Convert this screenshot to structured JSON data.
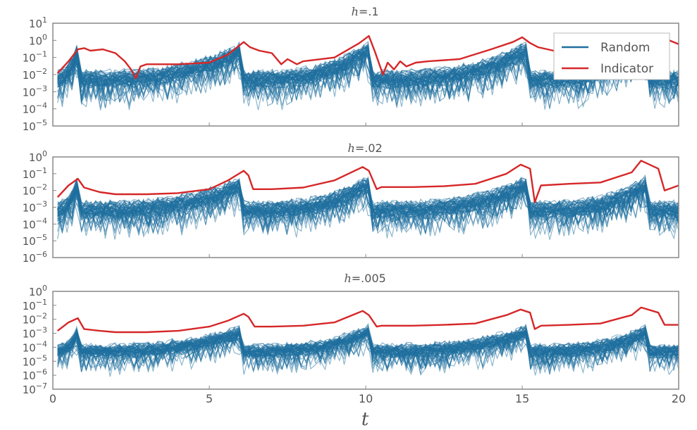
{
  "chart_data": {
    "type": "line",
    "shared_x": {
      "label": "t",
      "range": [
        0,
        20
      ],
      "ticks": [
        0,
        5,
        10,
        15,
        20
      ],
      "tick_labels": [
        "0",
        "5",
        "10",
        "15",
        "20"
      ]
    },
    "legend": {
      "placement": "top-right (upper panel)",
      "entries": [
        {
          "label": "Random",
          "color": "#1f6f9f"
        },
        {
          "label": "Indicator",
          "color": "#d62728"
        }
      ]
    },
    "colors": {
      "random": "#1f6f9f",
      "indicator": "#d62728",
      "axis": "#888888",
      "text": "#555555"
    },
    "y_scale": "log",
    "grid": false,
    "panels": [
      {
        "title_var": "h",
        "title_value": "=.1",
        "ylim_exp": [
          -5,
          1
        ],
        "ytick_exps": [
          1,
          0,
          -1,
          -2,
          -3,
          -4,
          -5
        ],
        "random_band_exp": [
          -3.2,
          -0.5
        ],
        "random_series_count": 60,
        "indicator": {
          "x": [
            0.15,
            0.5,
            0.8,
            1.0,
            1.2,
            1.6,
            2.0,
            2.3,
            2.5,
            2.65,
            2.8,
            3.0,
            4.0,
            5.0,
            5.6,
            6.1,
            6.3,
            6.6,
            7.0,
            7.3,
            7.5,
            7.8,
            8.0,
            9.0,
            9.8,
            10.1,
            10.3,
            10.55,
            10.7,
            10.9,
            11.1,
            11.3,
            11.6,
            12.0,
            13.0,
            14.0,
            14.7,
            15.0,
            15.25,
            15.5,
            16.0,
            17.0,
            18.0,
            18.8,
            19.2,
            19.5,
            20.0
          ],
          "y": [
            0.012,
            0.06,
            0.3,
            0.35,
            0.25,
            0.3,
            0.18,
            0.06,
            0.02,
            0.006,
            0.03,
            0.04,
            0.04,
            0.05,
            0.15,
            0.8,
            0.4,
            0.25,
            0.18,
            0.04,
            0.08,
            0.04,
            0.06,
            0.1,
            0.7,
            1.8,
            0.2,
            0.01,
            0.05,
            0.02,
            0.06,
            0.03,
            0.05,
            0.06,
            0.08,
            0.3,
            0.8,
            1.5,
            0.7,
            0.4,
            0.25,
            0.2,
            0.15,
            0.25,
            0.8,
            1.4,
            0.6
          ]
        }
      },
      {
        "title_var": "h",
        "title_value": "=.02",
        "ylim_exp": [
          -6,
          0
        ],
        "ytick_exps": [
          0,
          -1,
          -2,
          -3,
          -4,
          -5,
          -6
        ],
        "random_band_exp": [
          -4.0,
          -1.6
        ],
        "random_series_count": 60,
        "indicator": {
          "x": [
            0.15,
            0.5,
            0.8,
            1.0,
            1.5,
            2.0,
            3.0,
            4.0,
            5.0,
            5.6,
            6.1,
            6.25,
            6.4,
            7.0,
            8.0,
            9.0,
            9.9,
            10.1,
            10.35,
            10.5,
            11.5,
            12.5,
            13.5,
            14.5,
            14.95,
            15.25,
            15.4,
            15.6,
            16.5,
            17.5,
            18.5,
            18.8,
            19.35,
            19.55,
            20.0
          ],
          "y": [
            0.004,
            0.02,
            0.05,
            0.015,
            0.008,
            0.006,
            0.006,
            0.007,
            0.012,
            0.04,
            0.15,
            0.08,
            0.012,
            0.012,
            0.015,
            0.04,
            0.25,
            0.15,
            0.012,
            0.016,
            0.016,
            0.018,
            0.025,
            0.1,
            0.35,
            0.2,
            0.002,
            0.02,
            0.025,
            0.03,
            0.12,
            0.6,
            0.2,
            0.01,
            0.02
          ]
        }
      },
      {
        "title_var": "h",
        "title_value": "=.005",
        "ylim_exp": [
          -7,
          0
        ],
        "ytick_exps": [
          0,
          -1,
          -2,
          -3,
          -4,
          -5,
          -6,
          -7
        ],
        "random_band_exp": [
          -5.0,
          -2.8
        ],
        "random_series_count": 60,
        "indicator": {
          "x": [
            0.15,
            0.5,
            0.8,
            1.0,
            1.5,
            2.0,
            3.0,
            4.0,
            5.0,
            5.6,
            6.1,
            6.25,
            6.45,
            7.0,
            8.0,
            9.0,
            9.9,
            10.1,
            10.35,
            10.5,
            11.5,
            12.5,
            13.5,
            14.5,
            14.95,
            15.25,
            15.4,
            15.6,
            16.5,
            17.5,
            18.5,
            18.8,
            19.35,
            19.55,
            20.0
          ],
          "y": [
            0.0015,
            0.006,
            0.012,
            0.002,
            0.0015,
            0.0012,
            0.0012,
            0.0015,
            0.003,
            0.008,
            0.025,
            0.015,
            0.003,
            0.003,
            0.0035,
            0.006,
            0.04,
            0.02,
            0.003,
            0.0035,
            0.0035,
            0.004,
            0.005,
            0.02,
            0.05,
            0.03,
            0.002,
            0.0035,
            0.004,
            0.005,
            0.02,
            0.07,
            0.03,
            0.004,
            0.004
          ]
        }
      }
    ]
  }
}
